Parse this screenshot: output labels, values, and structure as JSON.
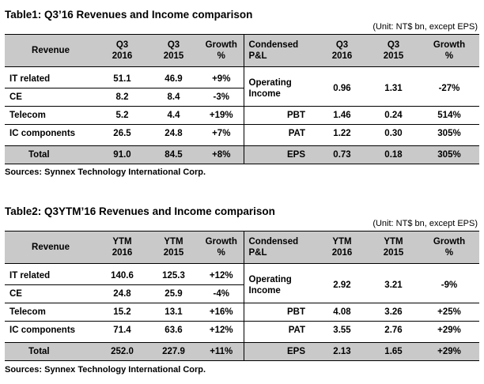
{
  "table1": {
    "title": "Table1: Q3’16 Revenues and Income comparison",
    "unit": "(Unit: NT$ bn, except EPS)",
    "headers": {
      "revenue": "Revenue",
      "c1": "Q3\n2016",
      "c2": "Q3\n2015",
      "c3": "Growth\n%",
      "pl": "Condensed\nP&L",
      "c4": "Q3\n2016",
      "c5": "Q3\n2015",
      "c6": "Growth\n%"
    },
    "revenue_rows": [
      {
        "label": "IT related",
        "v1": "51.1",
        "v2": "46.9",
        "g": "+9%"
      },
      {
        "label": "CE",
        "v1": "8.2",
        "v2": "8.4",
        "g": "-3%"
      },
      {
        "label": "Telecom",
        "v1": "5.2",
        "v2": "4.4",
        "g": "+19%"
      },
      {
        "label": "IC components",
        "v1": "26.5",
        "v2": "24.8",
        "g": "+7%"
      }
    ],
    "pl_rows": [
      {
        "label": "Operating\nIncome",
        "v1": "0.96",
        "v2": "1.31",
        "g": "-27%"
      },
      {
        "label": "PBT",
        "v1": "1.46",
        "v2": "0.24",
        "g": "514%"
      },
      {
        "label": "PAT",
        "v1": "1.22",
        "v2": "0.30",
        "g": "305%"
      }
    ],
    "total": {
      "label": "Total",
      "v1": "91.0",
      "v2": "84.5",
      "g": "+8%"
    },
    "eps": {
      "label": "EPS",
      "v1": "0.73",
      "v2": "0.18",
      "g": "305%"
    },
    "source": "Sources: Synnex Technology International Corp."
  },
  "table2": {
    "title": "Table2: Q3YTM’16 Revenues and Income comparison",
    "unit": "(Unit: NT$ bn, except EPS)",
    "headers": {
      "revenue": "Revenue",
      "c1": "YTM\n2016",
      "c2": "YTM\n2015",
      "c3": "Growth\n%",
      "pl": "Condensed\nP&L",
      "c4": "YTM\n2016",
      "c5": "YTM\n2015",
      "c6": "Growth\n%"
    },
    "revenue_rows": [
      {
        "label": "IT related",
        "v1": "140.6",
        "v2": "125.3",
        "g": "+12%"
      },
      {
        "label": "CE",
        "v1": "24.8",
        "v2": "25.9",
        "g": "-4%"
      },
      {
        "label": "Telecom",
        "v1": "15.2",
        "v2": "13.1",
        "g": "+16%"
      },
      {
        "label": "IC components",
        "v1": "71.4",
        "v2": "63.6",
        "g": "+12%"
      }
    ],
    "pl_rows": [
      {
        "label": "Operating\nIncome",
        "v1": "2.92",
        "v2": "3.21",
        "g": "-9%"
      },
      {
        "label": "PBT",
        "v1": "4.08",
        "v2": "3.26",
        "g": "+25%"
      },
      {
        "label": "PAT",
        "v1": "3.55",
        "v2": "2.76",
        "g": "+29%"
      }
    ],
    "total": {
      "label": "Total",
      "v1": "252.0",
      "v2": "227.9",
      "g": "+11%"
    },
    "eps": {
      "label": "EPS",
      "v1": "2.13",
      "v2": "1.65",
      "g": "+29%"
    },
    "source": "Sources: Synnex Technology International Corp."
  }
}
